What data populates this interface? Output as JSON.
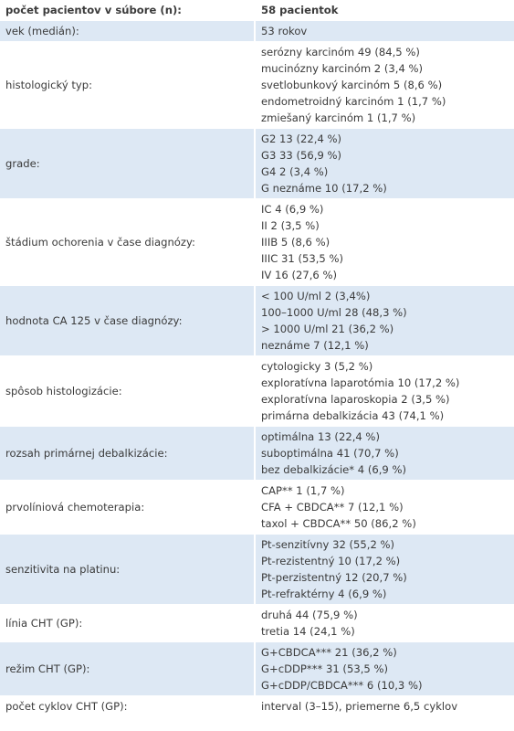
{
  "table": {
    "header": [
      "počet pacientov v súbore (n):",
      "58 pacientok"
    ],
    "rows": [
      {
        "label": "vek (medián):",
        "values": [
          "53 rokov"
        ]
      },
      {
        "label": "histologický typ:",
        "values": [
          "serózny karcinóm 49 (84,5 %)",
          "mucinózny karcinóm 2 (3,4 %)",
          "svetlobunkový karcinóm 5 (8,6 %)",
          "endometroidný karcinóm 1 (1,7 %)",
          "zmiešaný karcinóm 1 (1,7 %)"
        ]
      },
      {
        "label": "grade:",
        "values": [
          "G2 13 (22,4 %)",
          "G3 33 (56,9 %)",
          "G4 2 (3,4 %)",
          "G neznáme 10 (17,2 %)"
        ]
      },
      {
        "label": "štádium ochorenia v čase diagnózy:",
        "values": [
          "IC 4 (6,9 %)",
          "II 2 (3,5 %)",
          "IIIB 5 (8,6 %)",
          "IIIC 31 (53,5 %)",
          "IV 16 (27,6 %)"
        ]
      },
      {
        "label": "hodnota CA 125 v čase diagnózy:",
        "values": [
          "< 100 U/ml 2 (3,4%)",
          "100–1000 U/ml 28 (48,3 %)",
          "> 1000 U/ml 21 (36,2 %)",
          "neznáme 7 (12,1 %)"
        ]
      },
      {
        "label": "spôsob histologizácie:",
        "values": [
          "cytologicky 3 (5,2 %)",
          "exploratívna laparotómia 10 (17,2 %)",
          "exploratívna laparoskopia 2 (3,5 %)",
          "primárna debalkizácia 43 (74,1 %)"
        ]
      },
      {
        "label": "rozsah primárnej debalkizácie:",
        "values": [
          "optimálna 13 (22,4 %)",
          "suboptimálna 41 (70,7 %)",
          "bez debalkizácie* 4 (6,9 %)"
        ]
      },
      {
        "label": "prvolíniová chemoterapia:",
        "values": [
          "CAP** 1 (1,7 %)",
          "CFA + CBDCA** 7 (12,1 %)",
          "taxol + CBDCA** 50 (86,2 %)"
        ]
      },
      {
        "label": "senzitivita na platinu:",
        "values": [
          "Pt-senzitívny 32 (55,2 %)",
          "Pt-rezistentný 10 (17,2 %)",
          "Pt-perzistentný 12 (20,7 %)",
          "Pt-refraktérny 4 (6,9 %)"
        ]
      },
      {
        "label": "línia CHT (GP):",
        "values": [
          "druhá 44 (75,9 %)",
          "tretia 14 (24,1 %)"
        ]
      },
      {
        "label": "režim CHT (GP):",
        "values": [
          "G+CBDCA*** 21 (36,2 %)",
          "G+cDDP*** 31 (53,5 %)",
          "G+cDDP/CBDCA*** 6 (10,3 %)"
        ]
      },
      {
        "label": "počet cyklov CHT (GP):",
        "values": [
          "interval (3–15), priemerne 6,5 cyklov"
        ]
      }
    ]
  }
}
